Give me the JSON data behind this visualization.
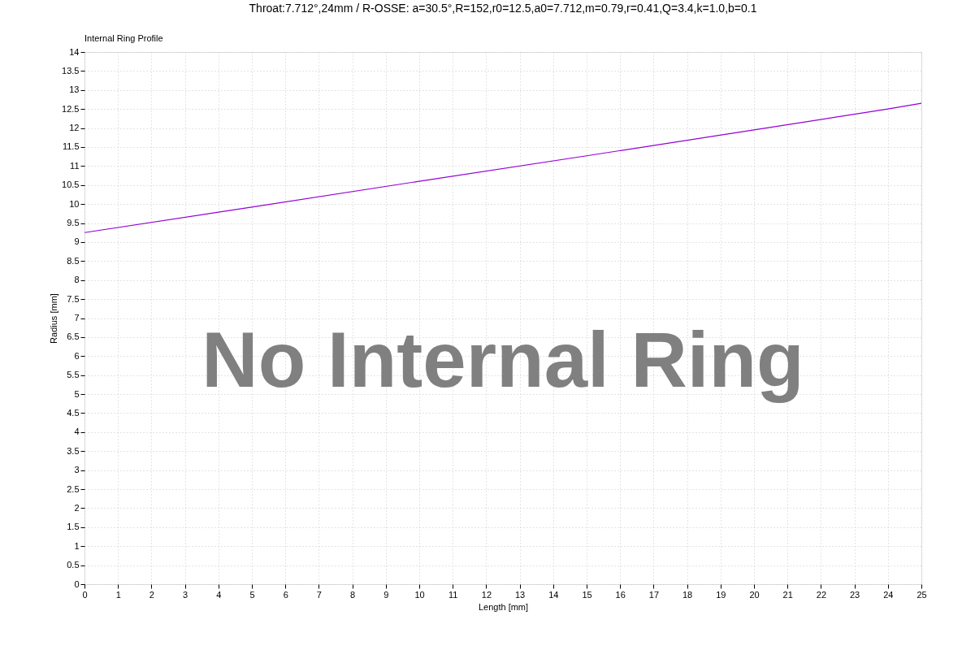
{
  "chart_data": {
    "type": "line",
    "title": "Throat:7.712°,24mm / R-OSSE: a=30.5°,R=152,r0=12.5,a0=7.712,m=0.79,r=0.41,Q=3.4,k=1.0,b=0.1",
    "subtitle": "Internal Ring Profile",
    "xlabel": "Length [mm]",
    "ylabel": "Radius [mm]",
    "x": [
      0,
      5,
      10,
      15,
      20,
      24,
      25
    ],
    "series": [
      {
        "color": "#9400d3",
        "values": [
          9.25,
          9.92,
          10.6,
          11.27,
          11.95,
          12.5,
          12.65
        ]
      }
    ],
    "xlim": [
      0,
      25
    ],
    "xticks": [
      0,
      1,
      2,
      3,
      4,
      5,
      6,
      7,
      8,
      9,
      10,
      11,
      12,
      13,
      14,
      15,
      16,
      17,
      18,
      19,
      20,
      21,
      22,
      23,
      24,
      25
    ],
    "ylim": [
      0,
      14
    ],
    "yticks": [
      0,
      0.5,
      1,
      1.5,
      2,
      2.5,
      3,
      3.5,
      4,
      4.5,
      5,
      5.5,
      6,
      6.5,
      7,
      7.5,
      8,
      8.5,
      9,
      9.5,
      10,
      10.5,
      11,
      11.5,
      12,
      12.5,
      13,
      13.5,
      14
    ],
    "annotations": [
      "No Internal Ring"
    ],
    "grid": true,
    "marker": "none",
    "line_style": "solid"
  }
}
